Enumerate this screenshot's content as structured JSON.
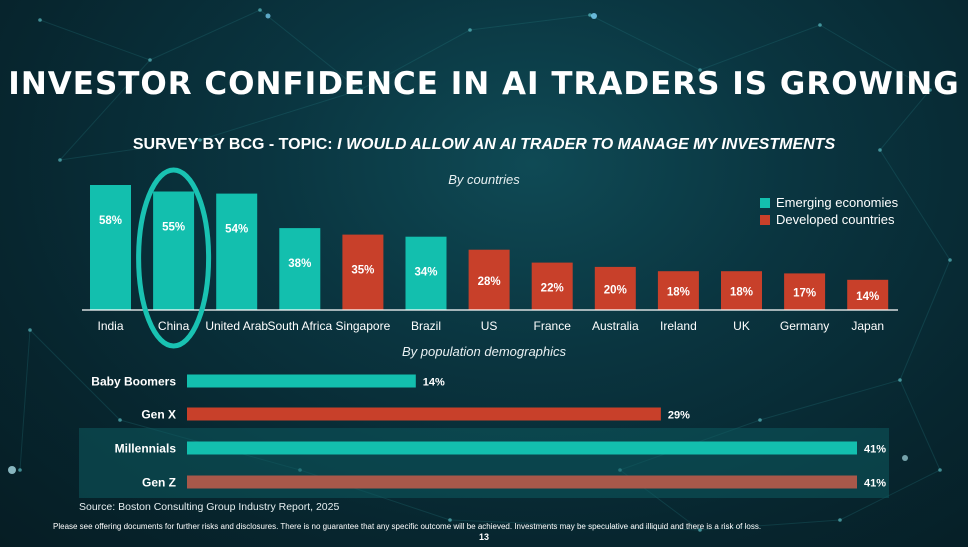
{
  "title": "INVESTOR CONFIDENCE IN AI TRADERS IS GROWING",
  "subtitle_prefix": "SURVEY BY BCG - TOPIC: ",
  "subtitle_topic": "I WOULD ALLOW AN AI TRADER TO MANAGE MY INVESTMENTS",
  "source": "Source: Boston Consulting Group Industry Report, 2025",
  "disclaimer": "Please see offering documents for further risks and disclosures. There is no guarantee that any specific outcome will be achieved. Investments may be speculative and illiquid and there is a risk of loss.",
  "page_number": "13",
  "colors": {
    "emerging": "#13bfae",
    "developed": "#c8402a",
    "genz": "#a8584a",
    "highlight_ring": "#19c2b2"
  },
  "chart_data": [
    {
      "type": "bar",
      "subtitle": "By countries",
      "categories": [
        "India",
        "China",
        "United Arab",
        "South Africa",
        "Singapore",
        "Brazil",
        "US",
        "France",
        "Australia",
        "Ireland",
        "UK",
        "Germany",
        "Japan"
      ],
      "values": [
        58,
        55,
        54,
        38,
        35,
        34,
        28,
        22,
        20,
        18,
        18,
        17,
        14
      ],
      "value_labels": [
        "58%",
        "55%",
        "54%",
        "38%",
        "35%",
        "34%",
        "28%",
        "22%",
        "20%",
        "18%",
        "18%",
        "17%",
        "14%"
      ],
      "groups": [
        "emerging",
        "emerging",
        "emerging",
        "emerging",
        "developed",
        "emerging",
        "developed",
        "developed",
        "developed",
        "developed",
        "developed",
        "developed",
        "developed"
      ],
      "highlighted": "China",
      "legend": [
        {
          "key": "emerging",
          "label": "Emerging economies"
        },
        {
          "key": "developed",
          "label": "Developed countries"
        }
      ],
      "legend_position": "top-right",
      "ylim": [
        0,
        60
      ]
    },
    {
      "type": "bar",
      "orientation": "horizontal",
      "subtitle": "By population demographics",
      "categories": [
        "Baby Boomers",
        "Gen X",
        "Millennials",
        "Gen Z"
      ],
      "values": [
        14,
        29,
        41,
        41
      ],
      "value_labels": [
        "14%",
        "29%",
        "41%",
        "41%"
      ],
      "colors": [
        "emerging",
        "developed",
        "emerging",
        "genz"
      ],
      "highlighted_rows": [
        "Millennials",
        "Gen Z"
      ],
      "xlim": [
        0,
        41
      ]
    }
  ]
}
